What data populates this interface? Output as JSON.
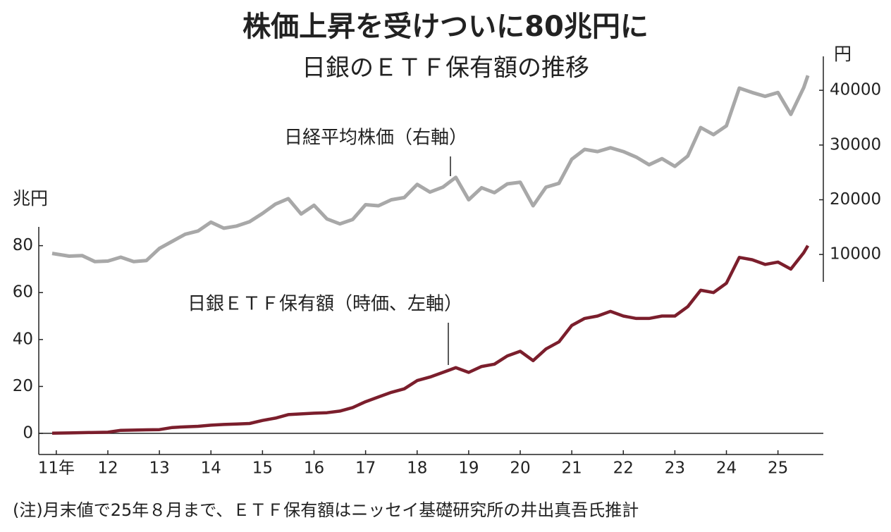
{
  "chart_data": {
    "type": "line",
    "title": "株価上昇を受けついに80兆円に",
    "subtitle": "日銀のＥＴＦ保有額の推移",
    "ylabel": "兆円",
    "y2label": "円",
    "note": "(注)月末値で25年８月まで、ＥＴＦ保有額はニッセイ基礎研究所の井出真吾氏推計",
    "annotations": [
      "日経平均株価（右軸）",
      "日銀ＥＴＦ保有額（時価、左軸）"
    ],
    "x": [
      2010.92,
      2011.25,
      2011.5,
      2011.75,
      2012.0,
      2012.25,
      2012.5,
      2012.75,
      2013.0,
      2013.25,
      2013.5,
      2013.75,
      2014.0,
      2014.25,
      2014.5,
      2014.75,
      2015.0,
      2015.25,
      2015.5,
      2015.75,
      2016.0,
      2016.25,
      2016.5,
      2016.75,
      2017.0,
      2017.25,
      2017.5,
      2017.75,
      2018.0,
      2018.25,
      2018.5,
      2018.75,
      2019.0,
      2019.25,
      2019.5,
      2019.75,
      2020.0,
      2020.25,
      2020.5,
      2020.75,
      2021.0,
      2021.25,
      2021.5,
      2021.75,
      2022.0,
      2022.25,
      2022.5,
      2022.75,
      2023.0,
      2023.25,
      2023.5,
      2023.75,
      2024.0,
      2024.25,
      2024.5,
      2024.75,
      2025.0,
      2025.25,
      2025.5,
      2025.58
    ],
    "series": [
      {
        "name": "日経平均株価",
        "color": "#a8a8a8",
        "axis": "y2",
        "values": [
          10200,
          9700,
          9800,
          8700,
          8800,
          9500,
          8700,
          8900,
          11100,
          12400,
          13700,
          14300,
          15900,
          14800,
          15200,
          16000,
          17500,
          19200,
          20200,
          17400,
          19000,
          16500,
          15600,
          16400,
          19100,
          18900,
          20000,
          20400,
          22800,
          21400,
          22300,
          24100,
          20000,
          22200,
          21300,
          22900,
          23200,
          18900,
          22300,
          23000,
          27400,
          29200,
          28800,
          29500,
          28800,
          27800,
          26400,
          27500,
          26100,
          28000,
          33200,
          31900,
          33500,
          40400,
          39600,
          38900,
          39600,
          35600,
          40500,
          42700
        ]
      },
      {
        "name": "日銀ＥＴＦ保有額",
        "color": "#7b1e2c",
        "values": [
          0.1,
          0.2,
          0.3,
          0.4,
          0.5,
          1.3,
          1.4,
          1.5,
          1.6,
          2.5,
          2.8,
          3.0,
          3.5,
          3.8,
          4.0,
          4.2,
          5.5,
          6.5,
          8.0,
          8.3,
          8.6,
          8.8,
          9.5,
          11,
          13.5,
          15.5,
          17.5,
          19,
          22.5,
          24,
          26,
          28,
          26,
          28.5,
          29.5,
          33,
          35,
          31,
          36,
          39,
          46,
          49,
          50,
          52,
          50,
          49,
          49,
          50,
          50,
          54,
          61,
          60,
          64,
          75,
          74,
          72,
          73,
          70,
          77,
          80
        ]
      }
    ],
    "xlim": [
      2010.66,
      2025.88
    ],
    "xticks": [
      {
        "value": 2011,
        "label": "11年"
      },
      {
        "value": 2012,
        "label": "12"
      },
      {
        "value": 2013,
        "label": "13"
      },
      {
        "value": 2014,
        "label": "14"
      },
      {
        "value": 2015,
        "label": "15"
      },
      {
        "value": 2016,
        "label": "16"
      },
      {
        "value": 2017,
        "label": "17"
      },
      {
        "value": 2018,
        "label": "18"
      },
      {
        "value": 2019,
        "label": "19"
      },
      {
        "value": 2020,
        "label": "20"
      },
      {
        "value": 2021,
        "label": "21"
      },
      {
        "value": 2022,
        "label": "22"
      },
      {
        "value": 2023,
        "label": "23"
      },
      {
        "value": 2024,
        "label": "24"
      },
      {
        "value": 2025,
        "label": "25"
      }
    ],
    "ylim": [
      -9,
      88
    ],
    "yticks": [
      0,
      20,
      40,
      60,
      80
    ],
    "y2lim": [
      5000,
      46200
    ],
    "y2ticks": [
      10000,
      20000,
      30000,
      40000
    ]
  }
}
